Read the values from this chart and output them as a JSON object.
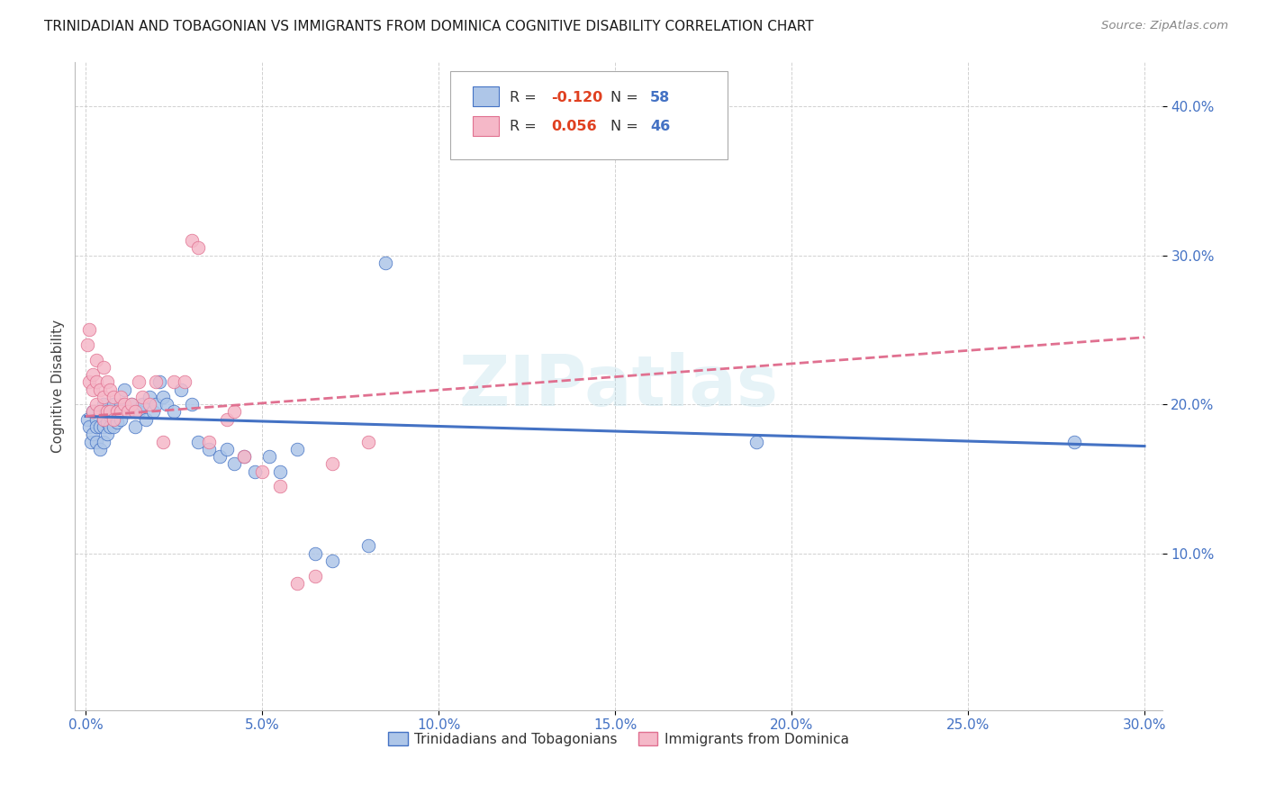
{
  "title": "TRINIDADIAN AND TOBAGONIAN VS IMMIGRANTS FROM DOMINICA COGNITIVE DISABILITY CORRELATION CHART",
  "source": "Source: ZipAtlas.com",
  "ylabel": "Cognitive Disability",
  "series1_name": "Trinidadians and Tobagonians",
  "series2_name": "Immigrants from Dominica",
  "series1_R": "-0.120",
  "series1_N": "58",
  "series2_R": "0.056",
  "series2_N": "46",
  "series1_color": "#aec6e8",
  "series2_color": "#f5b8c8",
  "series1_edge_color": "#4472c4",
  "series2_edge_color": "#e07090",
  "series1_line_color": "#4472c4",
  "series2_line_color": "#e07090",
  "xlim": [
    -0.003,
    0.305
  ],
  "ylim": [
    -0.005,
    0.43
  ],
  "x_ticks": [
    0.0,
    0.05,
    0.1,
    0.15,
    0.2,
    0.25,
    0.3
  ],
  "y_ticks": [
    0.1,
    0.2,
    0.3,
    0.4
  ],
  "watermark": "ZIPatlas",
  "background_color": "#ffffff",
  "grid_color": "#cccccc",
  "series1_x": [
    0.0005,
    0.001,
    0.0015,
    0.002,
    0.002,
    0.003,
    0.003,
    0.003,
    0.004,
    0.004,
    0.004,
    0.005,
    0.005,
    0.005,
    0.005,
    0.006,
    0.006,
    0.006,
    0.007,
    0.007,
    0.008,
    0.008,
    0.009,
    0.009,
    0.01,
    0.01,
    0.011,
    0.012,
    0.013,
    0.014,
    0.015,
    0.016,
    0.017,
    0.018,
    0.019,
    0.02,
    0.021,
    0.022,
    0.023,
    0.025,
    0.027,
    0.03,
    0.032,
    0.035,
    0.038,
    0.04,
    0.042,
    0.045,
    0.048,
    0.052,
    0.055,
    0.06,
    0.065,
    0.07,
    0.08,
    0.085,
    0.19,
    0.28
  ],
  "series1_y": [
    0.19,
    0.185,
    0.175,
    0.195,
    0.18,
    0.19,
    0.185,
    0.175,
    0.195,
    0.185,
    0.17,
    0.2,
    0.19,
    0.185,
    0.175,
    0.195,
    0.188,
    0.18,
    0.192,
    0.185,
    0.2,
    0.185,
    0.195,
    0.188,
    0.2,
    0.19,
    0.21,
    0.195,
    0.2,
    0.185,
    0.195,
    0.2,
    0.19,
    0.205,
    0.195,
    0.2,
    0.215,
    0.205,
    0.2,
    0.195,
    0.21,
    0.2,
    0.175,
    0.17,
    0.165,
    0.17,
    0.16,
    0.165,
    0.155,
    0.165,
    0.155,
    0.17,
    0.1,
    0.095,
    0.105,
    0.295,
    0.175,
    0.175
  ],
  "series2_x": [
    0.0005,
    0.001,
    0.001,
    0.002,
    0.002,
    0.002,
    0.003,
    0.003,
    0.003,
    0.004,
    0.004,
    0.005,
    0.005,
    0.005,
    0.006,
    0.006,
    0.007,
    0.007,
    0.008,
    0.008,
    0.009,
    0.01,
    0.01,
    0.011,
    0.012,
    0.013,
    0.014,
    0.015,
    0.016,
    0.018,
    0.02,
    0.022,
    0.025,
    0.028,
    0.03,
    0.032,
    0.035,
    0.04,
    0.042,
    0.045,
    0.05,
    0.055,
    0.06,
    0.065,
    0.07,
    0.08
  ],
  "series2_y": [
    0.24,
    0.25,
    0.215,
    0.22,
    0.21,
    0.195,
    0.23,
    0.215,
    0.2,
    0.21,
    0.195,
    0.225,
    0.205,
    0.19,
    0.215,
    0.195,
    0.21,
    0.195,
    0.205,
    0.19,
    0.195,
    0.205,
    0.195,
    0.2,
    0.195,
    0.2,
    0.195,
    0.215,
    0.205,
    0.2,
    0.215,
    0.175,
    0.215,
    0.215,
    0.31,
    0.305,
    0.175,
    0.19,
    0.195,
    0.165,
    0.155,
    0.145,
    0.08,
    0.085,
    0.16,
    0.175
  ],
  "trend1_x0": 0.0,
  "trend1_x1": 0.3,
  "trend1_y0": 0.192,
  "trend1_y1": 0.172,
  "trend2_x0": 0.0,
  "trend2_x1": 0.3,
  "trend2_y0": 0.192,
  "trend2_y1": 0.245
}
